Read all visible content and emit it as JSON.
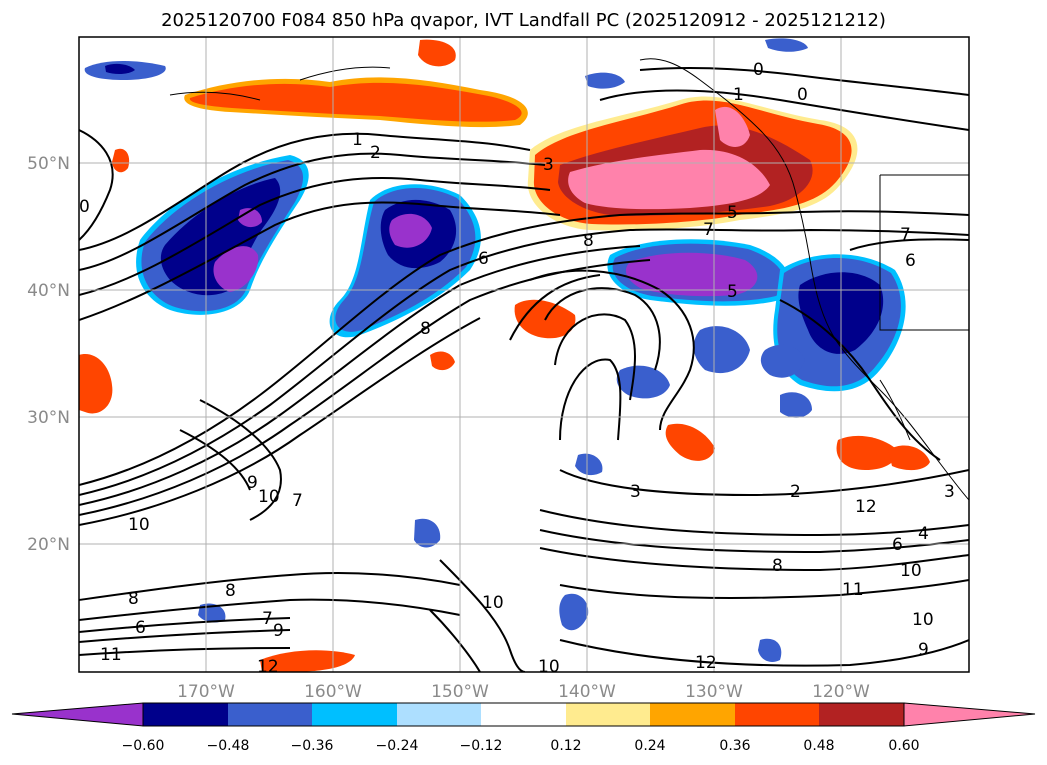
{
  "title": "2025120700 F084 850 hPa qvapor, IVT Landfall PC (2025120912 - 2025121212)",
  "map": {
    "lat_labels": [
      "50°N",
      "40°N",
      "30°N",
      "20°N"
    ],
    "lon_labels": [
      "170°W",
      "160°W",
      "150°W",
      "140°W",
      "130°W",
      "120°W"
    ],
    "lat_range": [
      10,
      60
    ],
    "lon_range": [
      -180,
      -110
    ],
    "colors": {
      "neg_extreme": "#9932CC",
      "neg_strong": "#00008B",
      "neg_mid": "#3A5FCD",
      "neg_light": "#00BFFF",
      "neg_faint": "#ADDFFF",
      "pos_faint": "#FFEB8F",
      "pos_light": "#FFA500",
      "pos_mid": "#FF4500",
      "pos_strong": "#B22222",
      "pos_extreme": "#FF82AB",
      "contour": "#000000",
      "grid": "#b0b0b0"
    }
  },
  "contour_labels": [
    "1",
    "2",
    "3",
    "5",
    "7",
    "8",
    "6",
    "8",
    "5",
    "0",
    "0",
    "1",
    "0",
    "9",
    "10",
    "7",
    "10",
    "3",
    "2",
    "6",
    "4",
    "8",
    "10",
    "11",
    "10",
    "9",
    "12",
    "10",
    "12",
    "9",
    "8",
    "6",
    "7",
    "11",
    "12",
    "8",
    "10",
    "3",
    "7",
    "6"
  ],
  "colorbar": {
    "ticks": [
      "−0.60",
      "−0.48",
      "−0.36",
      "−0.24",
      "−0.12",
      "0.12",
      "0.24",
      "0.36",
      "0.48",
      "0.60"
    ],
    "colors": [
      "#9932CC",
      "#00008B",
      "#3A5FCD",
      "#00BFFF",
      "#ADDFFF",
      "#FFFFFF",
      "#FFEB8F",
      "#FFA500",
      "#FF4500",
      "#B22222",
      "#FF82AB"
    ]
  }
}
